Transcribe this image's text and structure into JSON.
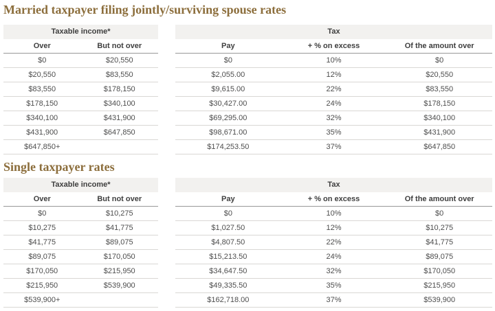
{
  "accent_color": "#8c6e3c",
  "sections": [
    {
      "title": "Married taxpayer filing jointly/surviving spouse rates",
      "income_group_header": "Taxable income*",
      "tax_group_header": "Tax",
      "income_columns": [
        "Over",
        "But not over"
      ],
      "tax_columns": [
        "Pay",
        "+ % on excess",
        "Of the amount over"
      ],
      "rows": [
        {
          "over": "$0",
          "but_not_over": "$20,550",
          "pay": "$0",
          "pct_on_excess": "10%",
          "of_amount_over": "$0"
        },
        {
          "over": "$20,550",
          "but_not_over": "$83,550",
          "pay": "$2,055.00",
          "pct_on_excess": "12%",
          "of_amount_over": "$20,550"
        },
        {
          "over": "$83,550",
          "but_not_over": "$178,150",
          "pay": "$9,615.00",
          "pct_on_excess": "22%",
          "of_amount_over": "$83,550"
        },
        {
          "over": "$178,150",
          "but_not_over": "$340,100",
          "pay": "$30,427.00",
          "pct_on_excess": "24%",
          "of_amount_over": "$178,150"
        },
        {
          "over": "$340,100",
          "but_not_over": "$431,900",
          "pay": "$69,295.00",
          "pct_on_excess": "32%",
          "of_amount_over": "$340,100"
        },
        {
          "over": "$431,900",
          "but_not_over": "$647,850",
          "pay": "$98,671.00",
          "pct_on_excess": "35%",
          "of_amount_over": "$431,900"
        },
        {
          "over": "$647,850+",
          "but_not_over": "",
          "pay": "$174,253.50",
          "pct_on_excess": "37%",
          "of_amount_over": "$647,850"
        }
      ]
    },
    {
      "title": "Single taxpayer rates",
      "income_group_header": "Taxable income*",
      "tax_group_header": "Tax",
      "income_columns": [
        "Over",
        "But not over"
      ],
      "tax_columns": [
        "Pay",
        "+ % on excess",
        "Of the amount over"
      ],
      "rows": [
        {
          "over": "$0",
          "but_not_over": "$10,275",
          "pay": "$0",
          "pct_on_excess": "10%",
          "of_amount_over": "$0"
        },
        {
          "over": "$10,275",
          "but_not_over": "$41,775",
          "pay": "$1,027.50",
          "pct_on_excess": "12%",
          "of_amount_over": "$10,275"
        },
        {
          "over": "$41,775",
          "but_not_over": "$89,075",
          "pay": "$4,807.50",
          "pct_on_excess": "22%",
          "of_amount_over": "$41,775"
        },
        {
          "over": "$89,075",
          "but_not_over": "$170,050",
          "pay": "$15,213.50",
          "pct_on_excess": "24%",
          "of_amount_over": "$89,075"
        },
        {
          "over": "$170,050",
          "but_not_over": "$215,950",
          "pay": "$34,647.50",
          "pct_on_excess": "32%",
          "of_amount_over": "$170,050"
        },
        {
          "over": "$215,950",
          "but_not_over": "$539,900",
          "pay": "$49,335.50",
          "pct_on_excess": "35%",
          "of_amount_over": "$215,950"
        },
        {
          "over": "$539,900+",
          "but_not_over": "",
          "pay": "$162,718.00",
          "pct_on_excess": "37%",
          "of_amount_over": "$539,900"
        }
      ]
    }
  ]
}
